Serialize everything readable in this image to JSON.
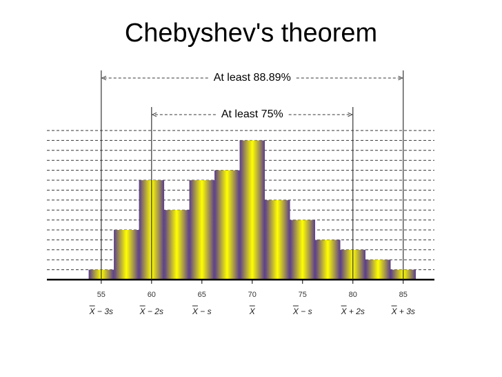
{
  "chart_data": {
    "type": "histogram",
    "title": "Chebyshev's theorem",
    "bins": [
      53.75,
      56.25,
      58.75,
      61.25,
      63.75,
      66.25,
      68.75,
      71.25,
      73.75,
      76.25,
      78.75,
      81.25,
      83.75,
      86.25
    ],
    "values": [
      1,
      5,
      10,
      7,
      10,
      11,
      14,
      8,
      6,
      4,
      3,
      2,
      1
    ],
    "color": [
      "#5a3d8c",
      "#ffff00"
    ],
    "xlim": [
      49.6,
      88.1
    ],
    "xticks": [
      55,
      60,
      65,
      70,
      75,
      80,
      85
    ],
    "xtick_symbols": [
      "X − 3s",
      "X − 2s",
      "X − s",
      "X",
      "X − s",
      "X + 2s",
      "X + 3s"
    ],
    "ylim": [
      0,
      15
    ],
    "yticks": [
      1,
      2,
      3,
      4,
      5,
      6,
      7,
      8,
      9,
      10,
      11,
      12,
      13,
      14,
      15
    ],
    "grid": true,
    "annotations": [
      {
        "text": "At least 88.89%",
        "x": [
          55,
          85
        ]
      },
      {
        "text": "At least 75%",
        "x": [
          60,
          80
        ]
      }
    ]
  }
}
